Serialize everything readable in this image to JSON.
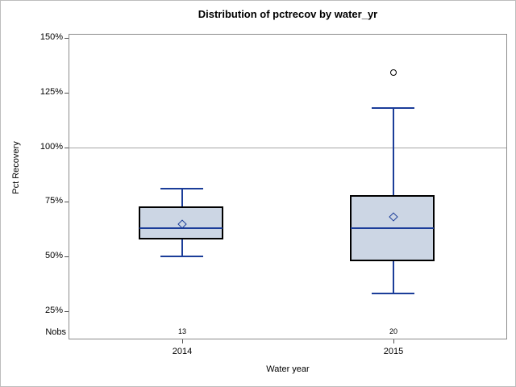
{
  "chart_data": {
    "type": "boxplot",
    "title": "Distribution of pctrecov by water_yr",
    "xlabel": "Water year",
    "ylabel": "Pct Recovery",
    "nobs_label": "Nobs",
    "value_unit": "percent",
    "categories": [
      "2014",
      "2015"
    ],
    "nobs": [
      13,
      20
    ],
    "y_ticks": [
      150,
      125,
      100,
      75,
      50,
      25
    ],
    "y_tick_suffix": "%",
    "ylim": [
      12,
      152
    ],
    "reference_line": 100,
    "grid": "off",
    "series": [
      {
        "category": "2014",
        "n": 13,
        "whisker_low": 50,
        "q1": 58,
        "median": 63,
        "mean": 65,
        "q3": 73,
        "whisker_high": 81,
        "outliers": []
      },
      {
        "category": "2015",
        "n": 20,
        "whisker_low": 33,
        "q1": 48,
        "median": 63,
        "mean": 68,
        "q3": 78,
        "whisker_high": 118,
        "outliers": [
          134
        ]
      }
    ],
    "colors": {
      "box_fill": "#ccd6e4",
      "box_border": "#000000",
      "line_blue": "#1b3d99",
      "reference_line": "#a6a6a6",
      "plot_border": "#8c8c8c",
      "tick": "#4d4d4d",
      "outlier": "#000000",
      "text": "#000000"
    }
  }
}
